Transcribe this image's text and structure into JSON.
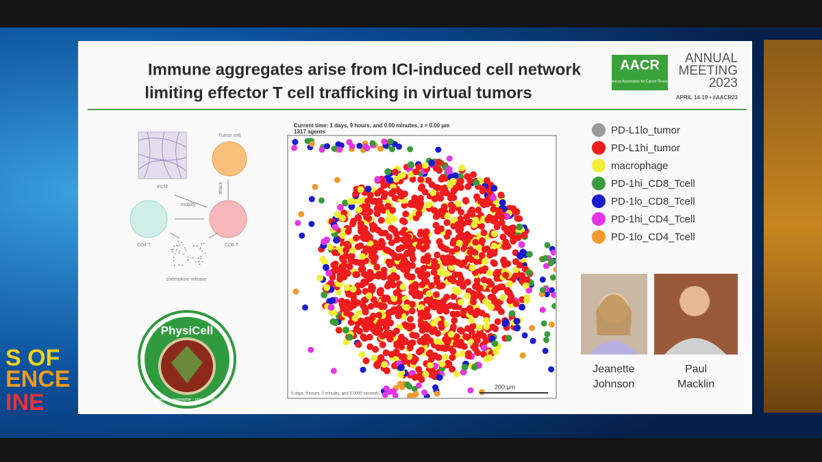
{
  "slide": {
    "title": [
      "Immune aggregates arise from ICI-induced cell network",
      "limiting effector T cell trafficking in virtual tumors"
    ],
    "logo": {
      "mark": "AACR",
      "subtitle": "American Association for Cancer Research",
      "event": [
        "ANNUAL",
        "MEETING",
        "2023"
      ],
      "dates": "APRIL 14-19 • #AACR23"
    },
    "diagram": {
      "ecm": "ECM",
      "tumor": "Tumor cell",
      "motility": "motility",
      "attack": "attack",
      "cd4": "CD4 T",
      "cd8": "CD8 T",
      "chemokine": "chemokine release"
    },
    "simulation": {
      "time": "Current time: 1 days, 9 hours, and 0.00 minutes, z = 0.00 μm",
      "agents": "1317 agents",
      "scale": "200 μm",
      "footer": "0 days, 9 hours, 0 minutes, and 0.0000 seconds"
    },
    "legend": [
      {
        "name": "PD-L1lo_tumor",
        "color": "#9a9a9a"
      },
      {
        "name": "PD-L1hi_tumor",
        "color": "#ee1c1c"
      },
      {
        "name": "macrophage",
        "color": "#f2ef3a"
      },
      {
        "name": "PD-1hi_CD8_Tcell",
        "color": "#3c9a3c"
      },
      {
        "name": "PD-1lo_CD8_Tcell",
        "color": "#1a1ad0"
      },
      {
        "name": "PD-1hi_CD4_Tcell",
        "color": "#e436e4"
      },
      {
        "name": "PD-1lo_CD4_Tcell",
        "color": "#f39a2a"
      }
    ],
    "people": [
      {
        "first": "Jeanette",
        "last": "Johnson"
      },
      {
        "first": "Paul",
        "last": "Macklin"
      }
    ],
    "physicell": {
      "name": "PhysiCell",
      "tagline": "Powerful · extensible · cross platform"
    }
  },
  "background": {
    "text": [
      "S OF",
      "ENCE",
      "INE"
    ]
  }
}
